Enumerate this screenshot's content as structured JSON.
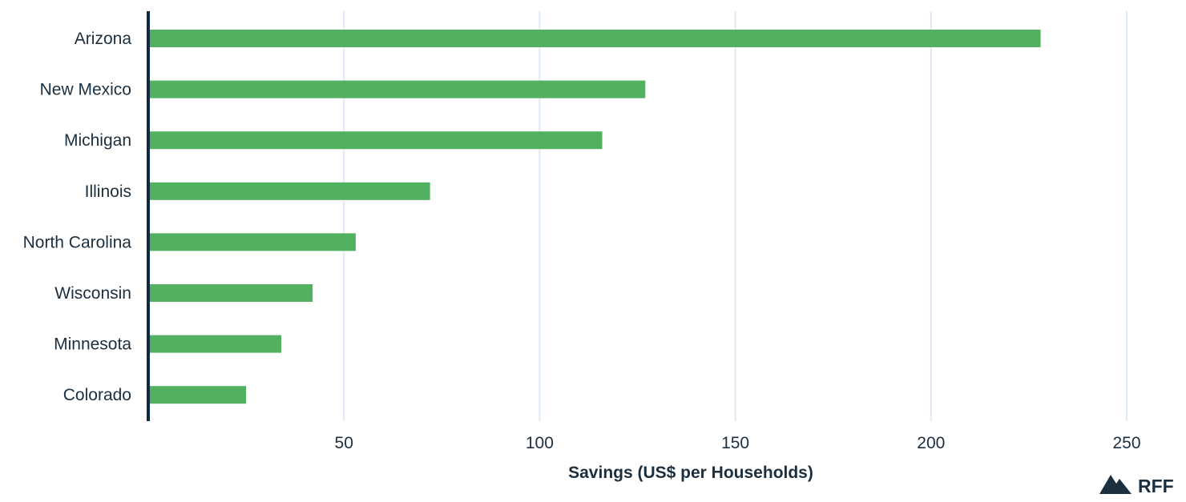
{
  "chart_data": {
    "type": "bar",
    "orientation": "horizontal",
    "categories": [
      "Arizona",
      "New Mexico",
      "Michigan",
      "Illinois",
      "North Carolina",
      "Wisconsin",
      "Minnesota",
      "Colorado"
    ],
    "values": [
      228,
      127,
      116,
      72,
      53,
      42,
      34,
      25
    ],
    "xlabel": "Savings (US$ per Households)",
    "ylabel": "",
    "xlim": [
      0,
      250
    ],
    "xticks": [
      50,
      100,
      150,
      200,
      250
    ],
    "grid": "vertical",
    "colors": {
      "bar": "#52b061",
      "axis": "#0e2a3d",
      "grid": "#dce9f6",
      "text": "#1c2f3f"
    }
  },
  "logo": {
    "text": "RFF",
    "icon": "mountain-icon"
  }
}
